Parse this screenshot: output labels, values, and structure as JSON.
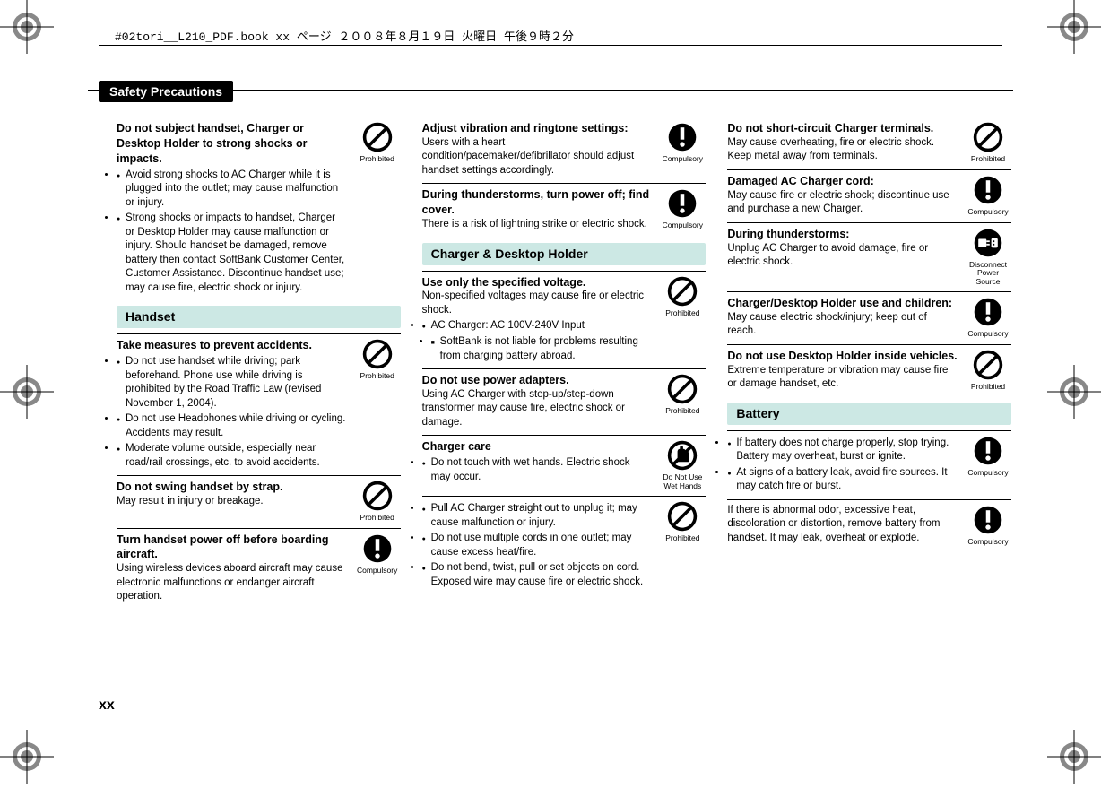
{
  "header_note": "#02tori__L210_PDF.book  xx ページ  ２００８年８月１９日  火曜日  午後９時２分",
  "title": "Safety Precautions",
  "page_num": "xx",
  "iconLabels": {
    "prohibited": "Prohibited",
    "compulsory": "Compulsory",
    "noWet": "Do Not Use Wet Hands",
    "disconnect": "Disconnect Power Source"
  },
  "columns": [
    [
      {
        "type": "item",
        "icon": "prohibited",
        "title": "Do not subject handset, Charger or Desktop Holder to strong shocks or impacts.",
        "bullets": [
          "Avoid strong shocks to AC Charger while it is plugged into the outlet; may cause malfunction or injury.",
          "Strong shocks or impacts to handset, Charger or Desktop Holder may cause malfunction or injury. Should handset be damaged, remove battery then contact SoftBank Customer Center, Customer Assistance. Discontinue handset use; may cause fire, electric shock or injury."
        ]
      },
      {
        "type": "section",
        "label": "Handset"
      },
      {
        "type": "item",
        "icon": "prohibited",
        "title": "Take measures to prevent accidents.",
        "bullets": [
          "Do not use handset while driving; park beforehand. Phone use while driving is prohibited by the Road Traffic Law (revised November 1, 2004).",
          "Do not use Headphones while driving or cycling. Accidents may result.",
          "Moderate volume outside, especially near road/rail crossings, etc. to avoid accidents."
        ]
      },
      {
        "type": "item",
        "icon": "prohibited",
        "title": "Do not swing handset by strap.",
        "text": "May result in injury or breakage."
      },
      {
        "type": "item",
        "icon": "compulsory",
        "title": "Turn handset power off before boarding aircraft.",
        "text": "Using wireless devices aboard aircraft may cause electronic malfunctions or endanger aircraft operation."
      }
    ],
    [
      {
        "type": "item",
        "icon": "compulsory",
        "title": "Adjust vibration and ringtone settings:",
        "text": "Users with a heart condition/pacemaker/defibrillator should adjust handset settings accordingly."
      },
      {
        "type": "item",
        "icon": "compulsory",
        "title": "During thunderstorms, turn power off; find cover.",
        "text": "There is a risk of lightning strike or electric shock."
      },
      {
        "type": "section",
        "label": "Charger & Desktop Holder"
      },
      {
        "type": "item",
        "icon": "prohibited",
        "title": "Use only the specified voltage.",
        "text": "Non-specified voltages may cause fire or electric shock.",
        "bullets": [
          "AC Charger: AC 100V-240V Input"
        ],
        "subbullets": [
          "SoftBank is not liable for problems resulting from charging battery abroad."
        ]
      },
      {
        "type": "item",
        "icon": "prohibited",
        "title": "Do not use power adapters.",
        "text": "Using AC Charger with step-up/step-down transformer may cause fire, electric shock or damage."
      },
      {
        "type": "item",
        "icon": "noWet",
        "title": "Charger care",
        "bullets": [
          "Do not touch with wet hands. Electric shock may occur."
        ]
      },
      {
        "type": "item",
        "icon": "prohibited",
        "bullets": [
          "Pull AC Charger straight out to unplug it; may cause malfunction or injury.",
          "Do not use multiple cords in one outlet; may cause excess heat/fire.",
          "Do not bend, twist, pull or set objects on cord. Exposed wire may cause fire or electric shock."
        ]
      }
    ],
    [
      {
        "type": "item",
        "icon": "prohibited",
        "title": "Do not short-circuit Charger terminals.",
        "text": "May cause overheating, fire or electric shock. Keep metal away from terminals."
      },
      {
        "type": "item",
        "icon": "compulsory",
        "title": "Damaged AC Charger cord:",
        "text": "May cause fire or electric shock; discontinue use and purchase a new Charger."
      },
      {
        "type": "item",
        "icon": "disconnect",
        "title": "During thunderstorms:",
        "text": "Unplug AC Charger to avoid damage, fire or electric shock."
      },
      {
        "type": "item",
        "icon": "compulsory",
        "title": "Charger/Desktop Holder use and children:",
        "text": "May cause electric shock/injury; keep out of reach."
      },
      {
        "type": "item",
        "icon": "prohibited",
        "title": "Do not use Desktop Holder inside vehicles.",
        "text": "Extreme temperature or vibration may cause fire or damage handset, etc."
      },
      {
        "type": "section",
        "label": "Battery"
      },
      {
        "type": "item",
        "icon": "compulsory",
        "bullets": [
          "If battery does not charge properly, stop trying. Battery may overheat, burst or ignite.",
          "At signs of a battery leak, avoid fire sources. It may catch fire or burst."
        ]
      },
      {
        "type": "item",
        "icon": "compulsory",
        "text": "If there is abnormal odor, excessive heat, discoloration or distortion, remove battery from handset. It may leak, overheat or explode."
      }
    ]
  ]
}
